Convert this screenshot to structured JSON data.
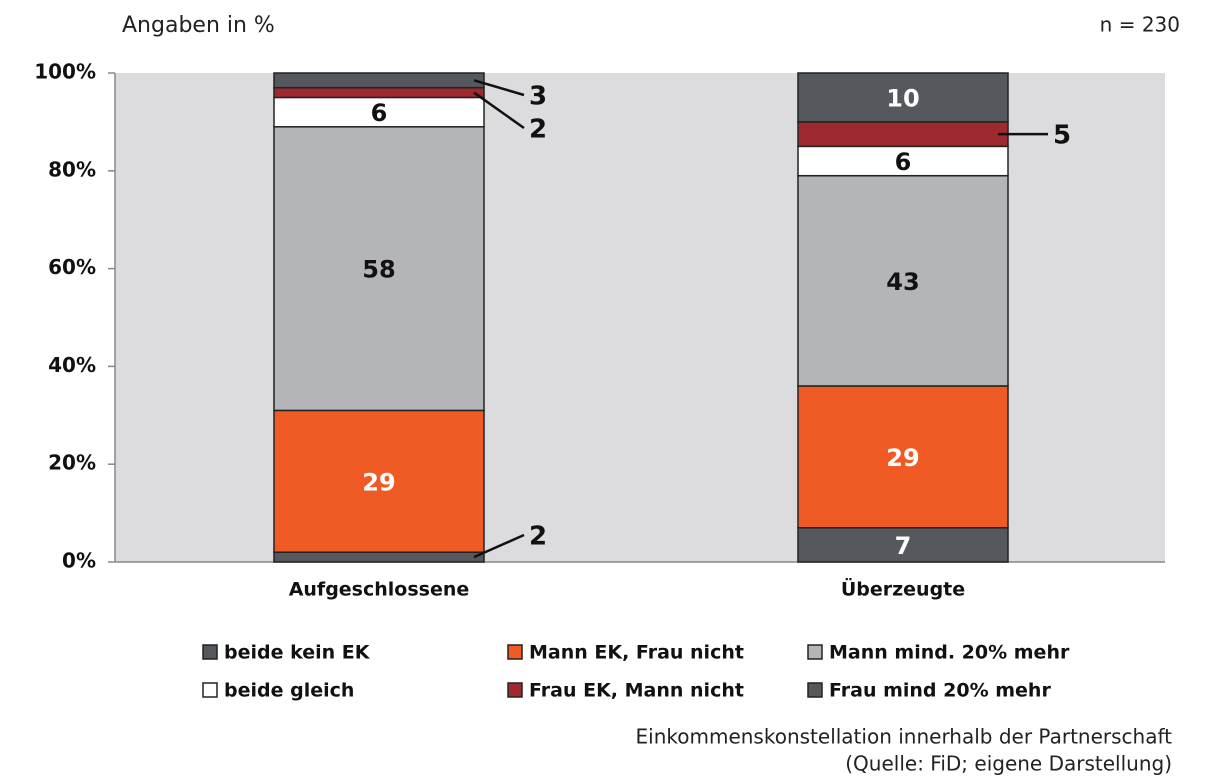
{
  "chart_data": {
    "type": "stacked_bar",
    "subtitle": "Angaben in %",
    "annotation": "n = 230",
    "footnote": [
      "Einkommenskonstellation innerhalb der Partnerschaft",
      "(Quelle: FiD; eigene Darstellung)"
    ],
    "categories": [
      "Aufgeschlossene",
      "Überzeugte"
    ],
    "series": [
      {
        "name": "beide kein EK",
        "color": "#55595d",
        "values": [
          2,
          7
        ]
      },
      {
        "name": "Mann EK, Frau nicht",
        "color": "#f05a24",
        "values": [
          29,
          29
        ]
      },
      {
        "name": "Mann mind. 20% mehr",
        "color": "#b4b5b9",
        "values": [
          58,
          43
        ]
      },
      {
        "name": "beide gleich",
        "color": "#ffffff",
        "values": [
          6,
          6
        ]
      },
      {
        "name": "Frau EK, Mann nicht",
        "color": "#9e2a30",
        "values": [
          2,
          5
        ]
      },
      {
        "name": "Frau mind 20% mehr",
        "color": "#55595d",
        "values": [
          3,
          10
        ]
      }
    ],
    "ylim": [
      0,
      100
    ],
    "yticks": [
      {
        "value": 0,
        "label": "0%"
      },
      {
        "value": 20,
        "label": "20%"
      },
      {
        "value": 40,
        "label": "40%"
      },
      {
        "value": 60,
        "label": "60%"
      },
      {
        "value": 80,
        "label": "80%"
      },
      {
        "value": 100,
        "label": "100%"
      }
    ]
  }
}
